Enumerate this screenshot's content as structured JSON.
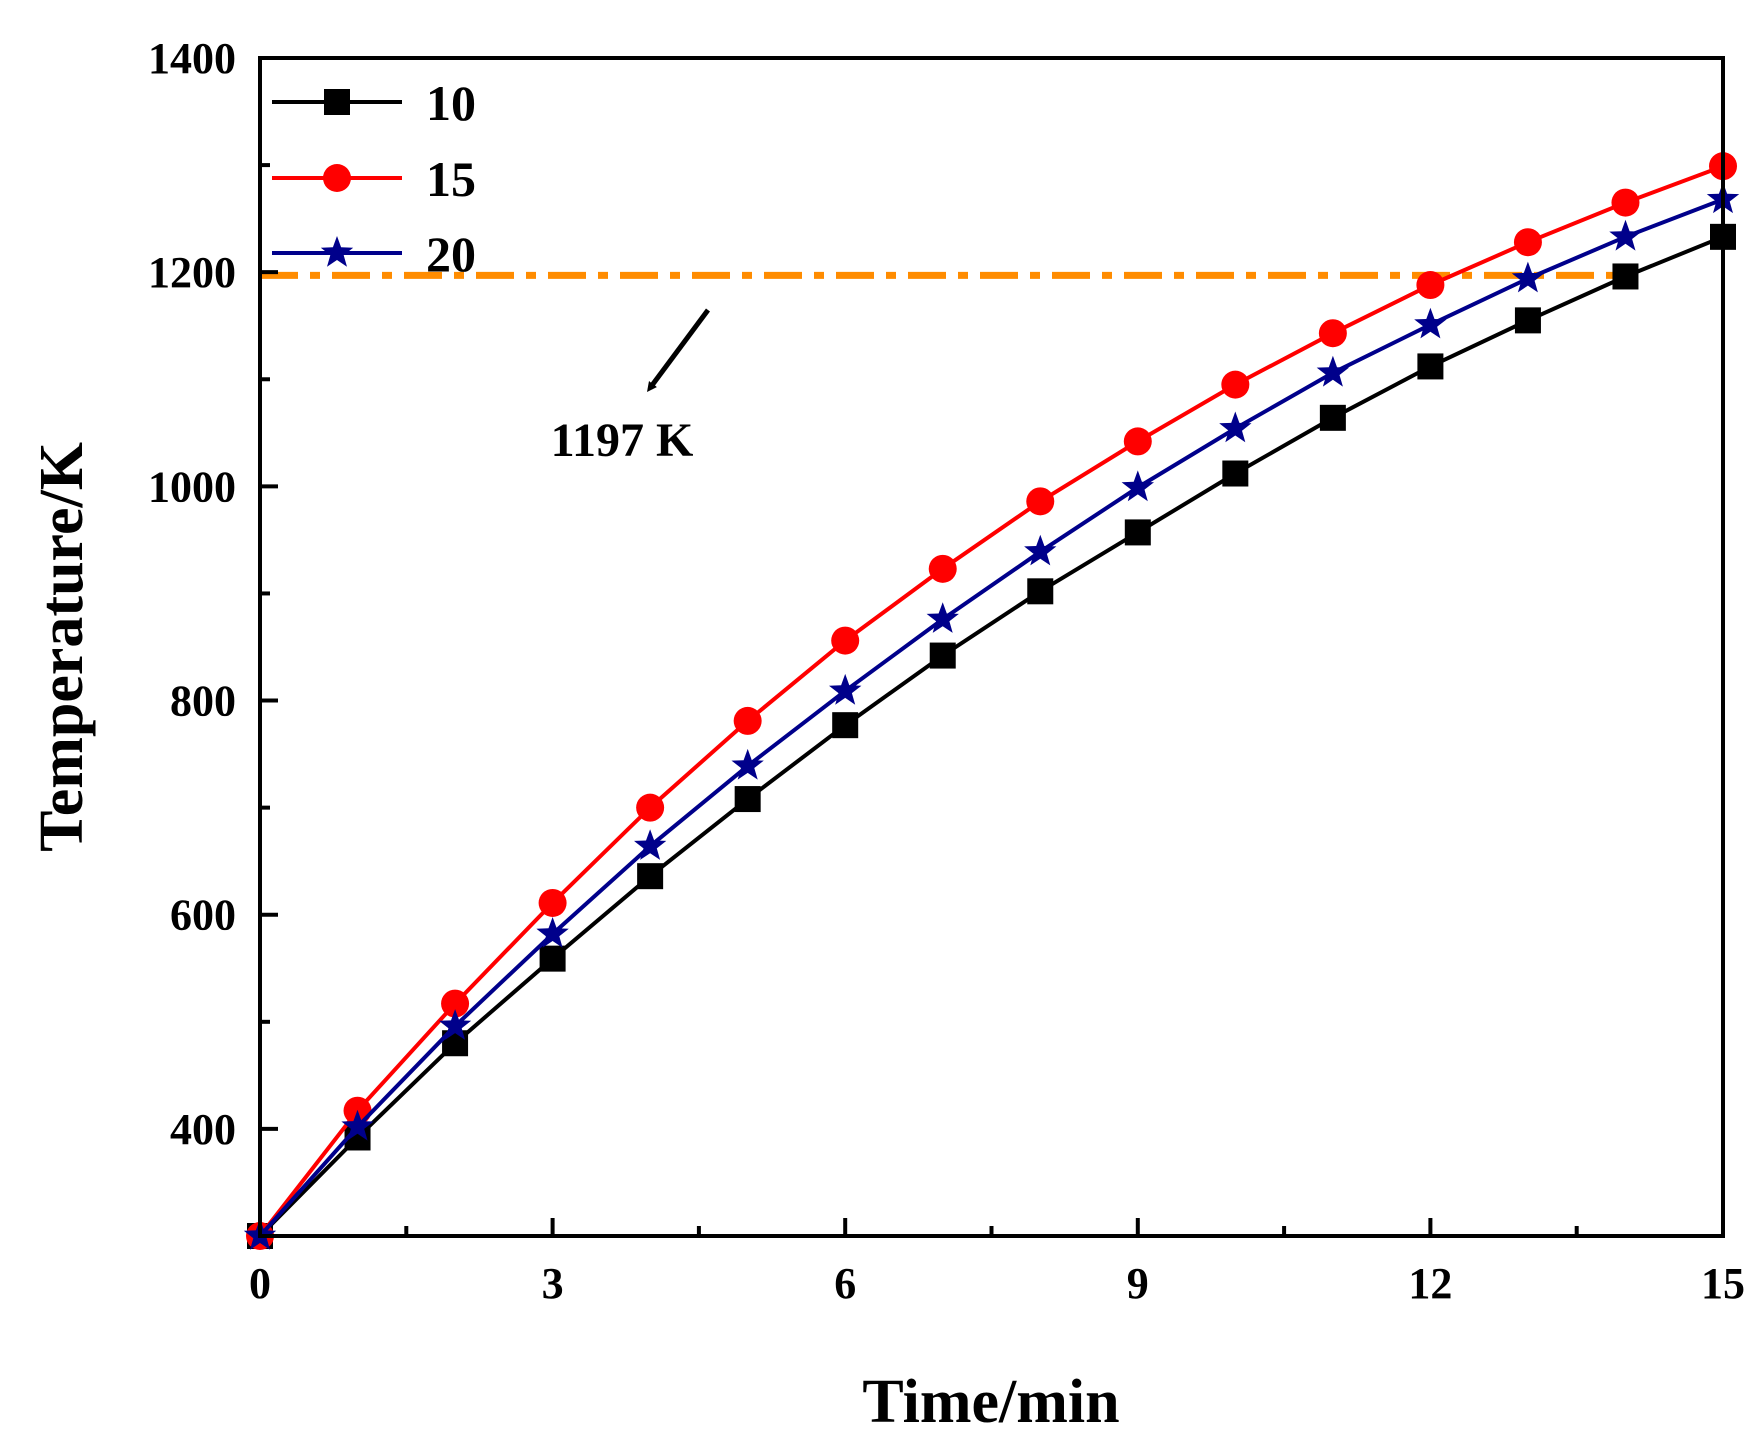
{
  "chart_data": {
    "type": "line",
    "title": "",
    "xlabel": "Time/min",
    "ylabel": "Temperature/K",
    "xlim": [
      0,
      15
    ],
    "ylim": [
      300,
      1400
    ],
    "xticks": [
      0,
      3,
      6,
      9,
      12,
      15
    ],
    "xtick_labels": [
      "0",
      "3",
      "6",
      "9",
      "12",
      "15"
    ],
    "yticks": [
      400,
      600,
      800,
      1000,
      1200,
      1400
    ],
    "ytick_labels": [
      "400",
      "600",
      "800",
      "1000",
      "1200",
      "1400"
    ],
    "grid": false,
    "legend_position": "top-left",
    "x": [
      0,
      1,
      2,
      3,
      4,
      5,
      6,
      7,
      8,
      9,
      10,
      11,
      12,
      13,
      14,
      15
    ],
    "series": [
      {
        "name": "10",
        "color": "#000000",
        "marker": "square",
        "values": [
          300,
          392,
          480,
          559,
          636,
          708,
          777,
          842,
          902,
          957,
          1012,
          1064,
          1112,
          1155,
          1196,
          1233
        ]
      },
      {
        "name": "15",
        "color": "#ff0000",
        "marker": "circle",
        "values": [
          300,
          417,
          517,
          611,
          700,
          781,
          856,
          923,
          986,
          1042,
          1095,
          1143,
          1188,
          1228,
          1265,
          1299
        ]
      },
      {
        "name": "20",
        "color": "#00008b",
        "marker": "star",
        "values": [
          300,
          402,
          496,
          582,
          664,
          739,
          809,
          876,
          939,
          999,
          1054,
          1106,
          1151,
          1194,
          1233,
          1268
        ]
      }
    ],
    "reference_line": {
      "value": 1197,
      "x_range": [
        0,
        14
      ],
      "color": "#ff8c00",
      "style": "dash-dot"
    },
    "annotation": {
      "text": "1197 K"
    }
  }
}
